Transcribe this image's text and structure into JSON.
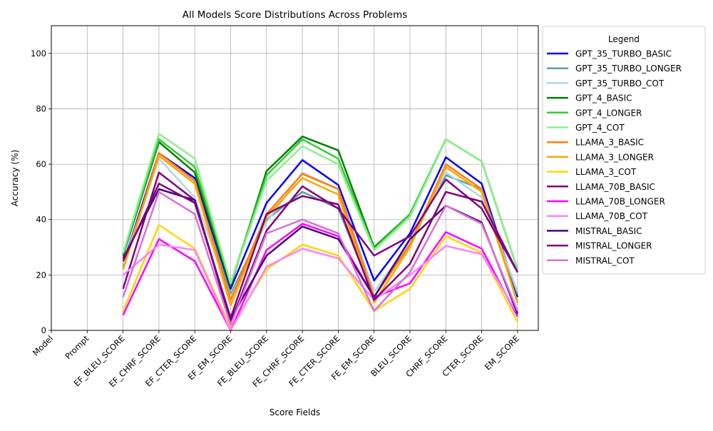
{
  "chart_data": {
    "type": "line",
    "title": "All Models Score Distributions Across Problems",
    "xlabel": "Score Fields",
    "ylabel": "Accuracy (%)",
    "ylim": [
      0,
      110
    ],
    "yticks": [
      0,
      20,
      40,
      60,
      80,
      100
    ],
    "grid": true,
    "legend_title": "Legend",
    "legend_position": "outside-right",
    "categories": [
      "Model",
      "Prompt",
      "EF_BLEU_SCORE",
      "EF_CHRF_SCORE",
      "EF_CTER_SCORE",
      "EF_EM_SCORE",
      "FE_BLEU_SCORE",
      "FE_CHRF_SCORE",
      "FE_CTER_SCORE",
      "FE_EM_SCORE",
      "BLEU_SCORE",
      "CHRF_SCORE",
      "CTER_SCORE",
      "EM_SCORE"
    ],
    "series": [
      {
        "name": "GPT_35_TURBO_BASIC",
        "color": "#0000ff",
        "values": [
          null,
          null,
          24,
          64,
          55,
          15,
          46,
          61.5,
          52.5,
          18,
          35,
          62.5,
          53,
          12
        ]
      },
      {
        "name": "GPT_35_TURBO_LONGER",
        "color": "#5f9ea0",
        "values": [
          null,
          null,
          23,
          63,
          53,
          13,
          40,
          50,
          44,
          12,
          32,
          56,
          51,
          13
        ]
      },
      {
        "name": "GPT_35_TURBO_COT",
        "color": "#add8e6",
        "values": [
          null,
          null,
          24,
          62,
          48,
          12,
          39,
          57,
          51,
          14,
          32,
          57,
          48,
          14
        ]
      },
      {
        "name": "GPT_4_BASIC",
        "color": "#008000",
        "values": [
          null,
          null,
          27,
          68,
          57,
          16,
          57.5,
          70,
          65,
          30,
          42,
          69,
          61,
          22
        ]
      },
      {
        "name": "GPT_4_LONGER",
        "color": "#32cd32",
        "values": [
          null,
          null,
          27.5,
          69,
          59,
          17,
          56,
          69,
          62,
          29.5,
          42,
          69,
          61,
          22
        ]
      },
      {
        "name": "GPT_4_COT",
        "color": "#90ee90",
        "values": [
          null,
          null,
          28,
          71,
          62,
          17,
          54,
          66.5,
          60,
          29,
          41,
          69,
          61,
          22
        ]
      },
      {
        "name": "LLAMA_3_BASIC",
        "color": "#ff7f0e",
        "values": [
          null,
          null,
          22,
          64,
          54,
          11,
          42,
          56.5,
          51,
          12,
          31,
          60,
          51,
          10
        ]
      },
      {
        "name": "LLAMA_3_LONGER",
        "color": "#ffa500",
        "values": [
          null,
          null,
          22,
          63,
          53,
          9,
          41,
          55,
          49,
          10,
          30,
          59,
          50,
          10
        ]
      },
      {
        "name": "LLAMA_3_COT",
        "color": "#ffd700",
        "values": [
          null,
          null,
          7,
          38,
          29.5,
          1,
          22,
          31,
          27,
          7,
          15,
          34,
          28,
          3
        ]
      },
      {
        "name": "LLAMA_70B_BASIC",
        "color": "#800080",
        "values": [
          null,
          null,
          15,
          57,
          47,
          3,
          36,
          52,
          44,
          27,
          34,
          54.5,
          44,
          21
        ]
      },
      {
        "name": "LLAMA_70B_LONGER",
        "color": "#ff00ff",
        "values": [
          null,
          null,
          5.5,
          33,
          25,
          0,
          29,
          38.5,
          34,
          12,
          17,
          35.5,
          29.5,
          5
        ]
      },
      {
        "name": "LLAMA_70B_COT",
        "color": "#ff80ff",
        "values": [
          null,
          null,
          20,
          31,
          29,
          0,
          23,
          29.5,
          26,
          11,
          20,
          30.5,
          27.5,
          6
        ]
      },
      {
        "name": "MISTRAL_BASIC",
        "color": "#4b0082",
        "values": [
          null,
          null,
          26,
          51,
          47,
          4,
          27,
          37.5,
          33,
          12,
          33,
          45,
          39,
          6
        ]
      },
      {
        "name": "MISTRAL_LONGER",
        "color": "#800080",
        "values": [
          null,
          null,
          25,
          53,
          46,
          4.5,
          42,
          48.5,
          45.5,
          11,
          24,
          50,
          46.5,
          21
        ]
      },
      {
        "name": "MISTRAL_COT",
        "color": "#da70d6",
        "values": [
          null,
          null,
          12,
          50,
          42,
          2,
          35,
          40,
          35,
          7,
          21,
          45,
          38.5,
          7
        ]
      }
    ]
  }
}
